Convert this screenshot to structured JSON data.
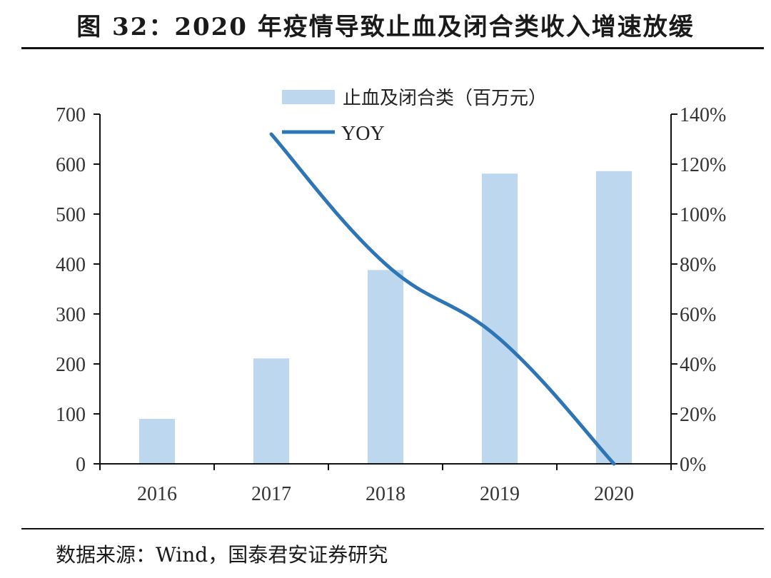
{
  "title": "图 32：2020 年疫情导致止血及闭合类收入增速放缓",
  "source": "数据来源：Wind，国泰君安证券研究",
  "colors": {
    "bar": "#BDD7EE",
    "line": "#2E75B6",
    "axis": "#111111"
  },
  "chart_data": {
    "type": "bar+line",
    "categories": [
      "2016",
      "2017",
      "2018",
      "2019",
      "2020"
    ],
    "series": [
      {
        "name": "止血及闭合类（百万元）",
        "type": "bar",
        "axis": "left",
        "values": [
          90,
          211,
          388,
          581,
          586
        ]
      },
      {
        "name": "YOY",
        "type": "line",
        "axis": "right",
        "values": [
          null,
          1.32,
          0.8,
          0.5,
          0.0
        ]
      }
    ],
    "left_axis": {
      "min": 0,
      "max": 700,
      "ticks": [
        "0",
        "100",
        "200",
        "300",
        "400",
        "500",
        "600",
        "700"
      ]
    },
    "right_axis": {
      "min": 0,
      "max": 1.4,
      "ticks": [
        "0%",
        "20%",
        "40%",
        "60%",
        "80%",
        "100%",
        "120%",
        "140%"
      ]
    },
    "legend": {
      "placement": "top-center"
    },
    "grid": false
  }
}
